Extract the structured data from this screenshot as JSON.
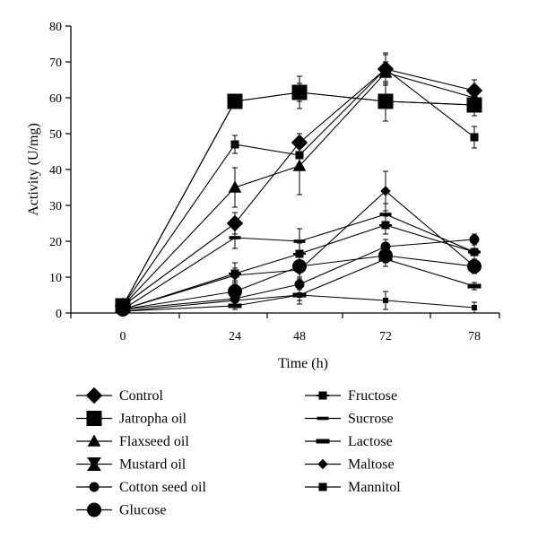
{
  "chart_data": {
    "type": "line",
    "xlabel": "Time (h)",
    "ylabel": "Activity (U/mg)",
    "categories": [
      "0",
      "24",
      "48",
      "72",
      "78"
    ],
    "ylim": [
      0,
      80
    ],
    "yticks": [
      0,
      10,
      20,
      30,
      40,
      50,
      60,
      70,
      80
    ],
    "grid": false,
    "legend": "bottom",
    "series": [
      {
        "name": "Control",
        "marker": "diamond-large",
        "values": [
          2,
          25,
          47.5,
          68,
          62
        ],
        "errors": [
          1,
          3,
          2.5,
          4,
          3
        ]
      },
      {
        "name": "Jatropha oil",
        "marker": "square-large",
        "values": [
          2,
          59,
          61.5,
          59,
          58
        ],
        "errors": [
          1,
          2,
          4.5,
          5.5,
          3
        ]
      },
      {
        "name": "Flaxseed oil",
        "marker": "triangle",
        "values": [
          2,
          35,
          41,
          67,
          60
        ],
        "errors": [
          1,
          5.5,
          8,
          3,
          2
        ]
      },
      {
        "name": "Mustard oil",
        "marker": "bowtie",
        "values": [
          2,
          59,
          61.5,
          59,
          58
        ],
        "errors": [
          1,
          1.5,
          2.5,
          2,
          2
        ]
      },
      {
        "name": "Cotton seed oil",
        "marker": "circle",
        "values": [
          1,
          4,
          8,
          18.5,
          20.5
        ],
        "errors": [
          0.5,
          1,
          1.5,
          2,
          1.5
        ]
      },
      {
        "name": "Glucose",
        "marker": "circle-large",
        "values": [
          1,
          6,
          13,
          16,
          13
        ],
        "errors": [
          0.5,
          3,
          3,
          2,
          2
        ]
      },
      {
        "name": "Fructose",
        "marker": "cross-square",
        "values": [
          1,
          11,
          16.5,
          24.5,
          17
        ],
        "errors": [
          0.5,
          3,
          3,
          2.5,
          2
        ]
      },
      {
        "name": "Sucrose",
        "marker": "dash-thin",
        "values": [
          1,
          21,
          20,
          27.5,
          17
        ],
        "errors": [
          0.5,
          3,
          3.5,
          3,
          2
        ]
      },
      {
        "name": "Lactose",
        "marker": "dash",
        "values": [
          0.5,
          2,
          5,
          15,
          7.5
        ],
        "errors": [
          0.5,
          1,
          1.5,
          2,
          1
        ]
      },
      {
        "name": "Maltose",
        "marker": "diamond",
        "values": [
          1,
          10.5,
          12,
          34,
          13
        ],
        "errors": [
          0.5,
          2,
          4,
          5.5,
          2
        ]
      },
      {
        "name": "Mannitol",
        "marker": "square",
        "values": [
          2,
          47,
          44,
          68,
          49
        ],
        "errors": [
          1,
          2.5,
          3,
          4.5,
          3
        ]
      },
      {
        "name": "",
        "marker": "small-square",
        "values": [
          0.5,
          3.5,
          5,
          3.5,
          1.5
        ],
        "errors": [
          0.5,
          2,
          2.5,
          2.5,
          1.5
        ]
      }
    ]
  }
}
